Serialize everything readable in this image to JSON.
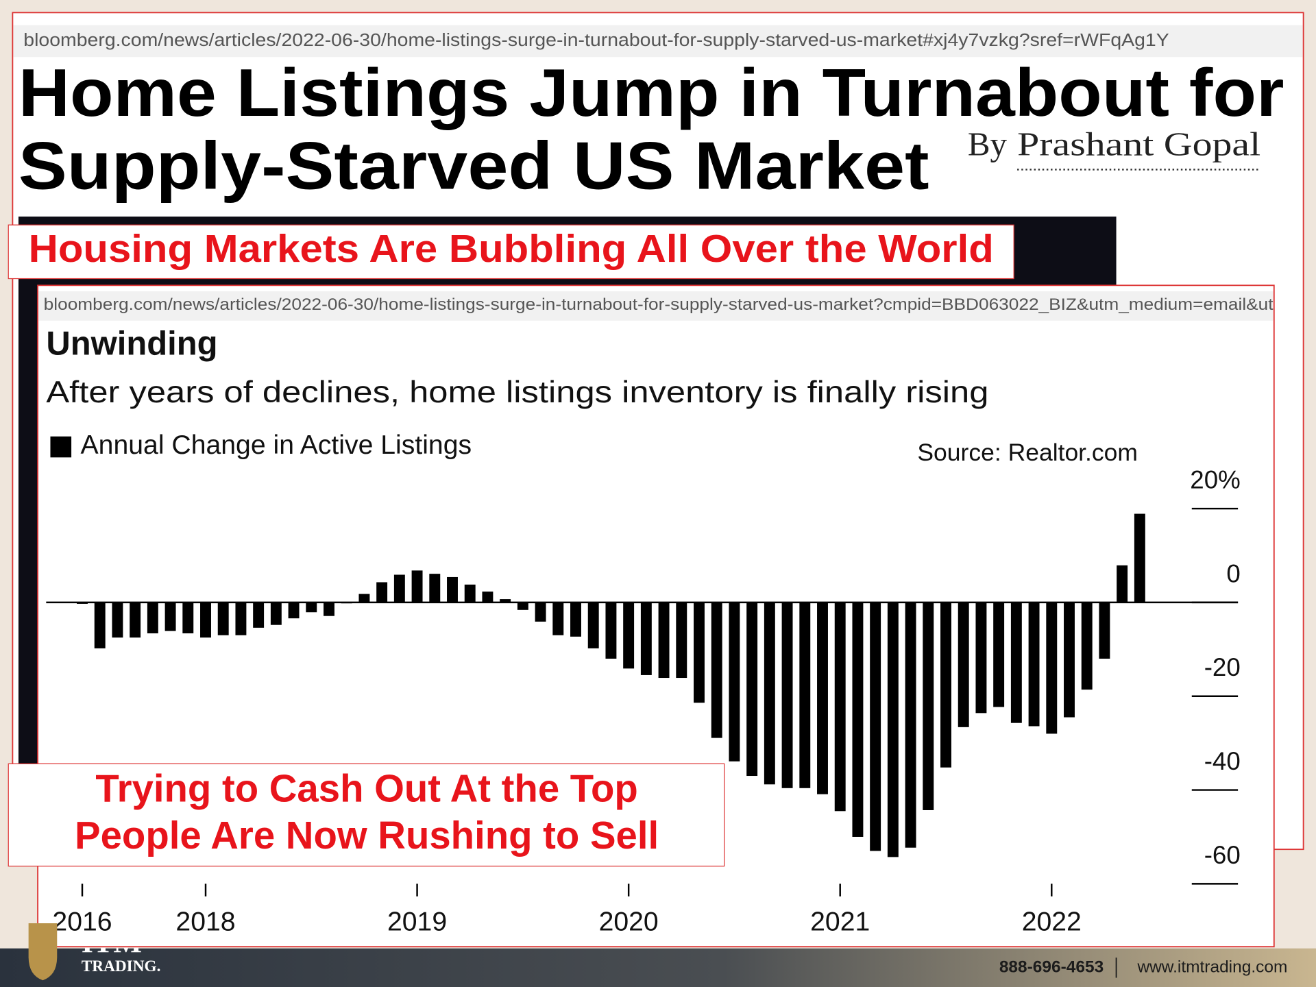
{
  "page": {
    "url_top": "bloomberg.com/news/articles/2022-06-30/home-listings-surge-in-turnabout-for-supply-starved-us-market#xj4y7vzkg?sref=rWFqAg1Y",
    "headline": [
      "Home Listings Jump in Turnabout for",
      "Supply-Starved US Market"
    ],
    "byline_prefix": "By",
    "byline_author": "Prashant Gopal",
    "caption_top": "Housing Markets Are Bubbling All Over the World",
    "url_chart": "bloomberg.com/news/articles/2022-06-30/home-listings-surge-in-turnabout-for-supply-starved-us-market?cmpid=BBD063022_BIZ&utm_medium=email&ut",
    "caption_bottom": [
      "Trying to Cash Out At the Top",
      "People Are Now Rushing to Sell"
    ],
    "footer": {
      "logo_top": "ITM",
      "logo_bottom": "TRADING.",
      "phone": "888-696-4653",
      "website": "www.itmtrading.com"
    }
  },
  "chart_data": {
    "type": "bar",
    "title": "Unwinding",
    "subtitle": "After years of declines, home listings inventory is finally rising",
    "source": "Source: Realtor.com",
    "categories": [
      "2016",
      null,
      null,
      null,
      null,
      null,
      null,
      "2018",
      null,
      null,
      null,
      null,
      null,
      null,
      null,
      null,
      null,
      null,
      null,
      "2019",
      null,
      null,
      null,
      null,
      null,
      null,
      null,
      null,
      null,
      null,
      null,
      "2020",
      null,
      null,
      null,
      null,
      null,
      null,
      null,
      null,
      null,
      null,
      null,
      "2021",
      null,
      null,
      null,
      null,
      null,
      null,
      null,
      null,
      null,
      null,
      null,
      "2022",
      null,
      null,
      null,
      null,
      null
    ],
    "series": [
      {
        "name": "Annual Change in Active Listings",
        "color": "#000000",
        "values": [
          -0.3,
          -9.8,
          -7.5,
          -7.5,
          -6.6,
          -6.1,
          -6.6,
          -7.5,
          -7.0,
          -7.0,
          -5.4,
          -4.8,
          -3.4,
          -2.1,
          -2.9,
          -0.2,
          1.8,
          4.3,
          5.9,
          6.8,
          6.1,
          5.4,
          3.8,
          2.3,
          0.7,
          -1.6,
          -4.1,
          -7.0,
          -7.3,
          -9.8,
          -12.0,
          -14.1,
          -15.5,
          -16.1,
          -16.1,
          -21.4,
          -28.9,
          -33.9,
          -37.0,
          -38.8,
          -39.6,
          -39.6,
          -40.9,
          -44.5,
          -50.0,
          -53.0,
          -54.3,
          -52.3,
          -44.3,
          -35.2,
          -26.6,
          -23.6,
          -22.3,
          -25.7,
          -26.4,
          -28.0,
          -24.5,
          -18.6,
          -12.0,
          7.9,
          18.9
        ]
      }
    ],
    "ylim": [
      -60,
      20
    ],
    "yticks": [
      {
        "value": 20,
        "label": "20%"
      },
      0,
      -20,
      -40,
      -60
    ],
    "y_axis_side": "right"
  }
}
